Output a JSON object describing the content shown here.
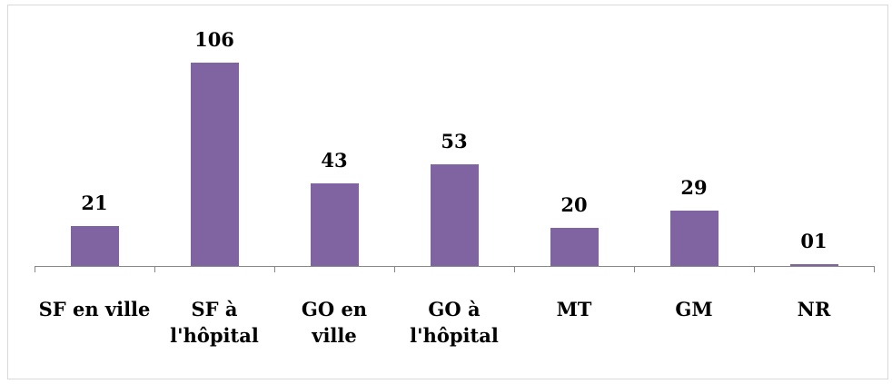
{
  "chart_data": {
    "type": "bar",
    "categories": [
      "SF en ville",
      "SF à l'hôpital",
      "GO en ville",
      "GO à l'hôpital",
      "MT",
      "GM",
      "NR"
    ],
    "values": [
      21,
      106,
      43,
      53,
      20,
      29,
      1
    ],
    "value_labels": [
      "21",
      "106",
      "43",
      "53",
      "20",
      "29",
      "01"
    ],
    "color": "#8064a2",
    "ylim": [
      0,
      120
    ]
  }
}
